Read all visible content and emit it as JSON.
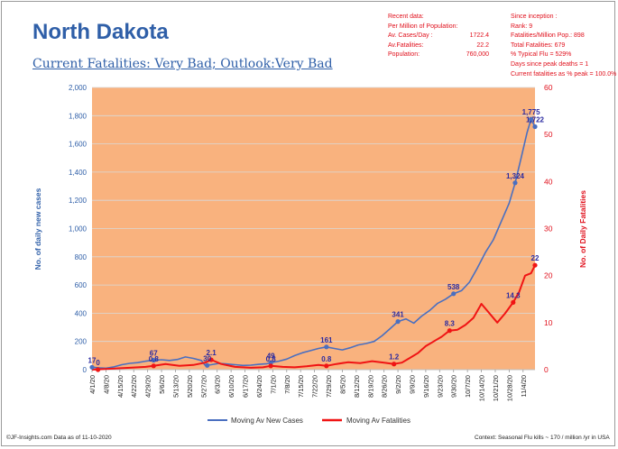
{
  "header": {
    "title": "North Dakota",
    "subtitle": "Current Fatalities: Very Bad; Outlook:Very Bad"
  },
  "recent": {
    "heading": "Recent data:",
    "per_million": "Per Million of Population:",
    "rows": [
      {
        "label": "Av. Cases/Day :",
        "value": "1722.4"
      },
      {
        "label": "Av.Fatalities:",
        "value": "22.2"
      },
      {
        "label": "Population:",
        "value": "760,000"
      }
    ]
  },
  "inception": {
    "heading": "Since inception :",
    "lines": [
      "Rank: 9",
      "Fatalities/Million Pop.: 898",
      "Total Fatalities: 679",
      "% Typical Flu = 529%",
      "Days since peak deaths = 1",
      "Current fatalities as % peak = 100.0%"
    ]
  },
  "footer": {
    "source": "©JF-Insights.com  Data as of 11-10-2020",
    "context": "Context: Seasonal Flu kills ~ 170 / million /yr in USA"
  },
  "colors": {
    "plot_bg": "#f9b27e",
    "cases": "#4a6fc0",
    "fatalities": "#f01414",
    "left_axis": "#2f5fa8",
    "right_axis": "#e0101c"
  },
  "chart_data": {
    "type": "line",
    "ylabel": "No. of daily new  cases",
    "y2label": "No. of Daily Fatalities",
    "ylim": [
      0,
      2000
    ],
    "y2lim": [
      0,
      60
    ],
    "yticks": [
      "0",
      "200",
      "400",
      "600",
      "800",
      "1,000",
      "1,200",
      "1,400",
      "1,600",
      "1,800",
      "2,000"
    ],
    "y2ticks": [
      "0",
      "10",
      "20",
      "30",
      "40",
      "50",
      "60"
    ],
    "xlim": [
      "2020-04-01",
      "2020-11-10"
    ],
    "xticks": [
      "4/1/20",
      "4/8/20",
      "4/15/20",
      "4/22/20",
      "4/29/20",
      "5/6/20",
      "5/13/20",
      "5/20/20",
      "5/27/20",
      "6/3/20",
      "6/10/20",
      "6/17/20",
      "6/24/20",
      "7/1/20",
      "7/8/20",
      "7/15/20",
      "7/22/20",
      "7/29/20",
      "8/5/20",
      "8/12/20",
      "8/19/20",
      "8/26/20",
      "9/2/20",
      "9/9/20",
      "9/16/20",
      "9/23/20",
      "9/30/20",
      "10/7/20",
      "10/14/20",
      "10/21/20",
      "10/28/20",
      "11/4/20"
    ],
    "grid": true,
    "legend_position": "bottom",
    "series": [
      {
        "name": "Moving Av New Cases",
        "axis": "left",
        "points": [
          [
            "2020-04-01",
            17
          ],
          [
            "2020-04-05",
            12
          ],
          [
            "2020-04-08",
            10
          ],
          [
            "2020-04-12",
            20
          ],
          [
            "2020-04-16",
            35
          ],
          [
            "2020-04-20",
            45
          ],
          [
            "2020-04-24",
            50
          ],
          [
            "2020-04-28",
            60
          ],
          [
            "2020-05-02",
            67
          ],
          [
            "2020-05-06",
            70
          ],
          [
            "2020-05-10",
            65
          ],
          [
            "2020-05-14",
            72
          ],
          [
            "2020-05-18",
            90
          ],
          [
            "2020-05-22",
            80
          ],
          [
            "2020-05-26",
            65
          ],
          [
            "2020-05-28",
            30
          ],
          [
            "2020-05-31",
            35
          ],
          [
            "2020-06-04",
            45
          ],
          [
            "2020-06-08",
            40
          ],
          [
            "2020-06-12",
            35
          ],
          [
            "2020-06-16",
            30
          ],
          [
            "2020-06-20",
            32
          ],
          [
            "2020-06-24",
            38
          ],
          [
            "2020-06-28",
            42
          ],
          [
            "2020-06-30",
            49
          ],
          [
            "2020-07-04",
            60
          ],
          [
            "2020-07-08",
            75
          ],
          [
            "2020-07-12",
            100
          ],
          [
            "2020-07-16",
            120
          ],
          [
            "2020-07-20",
            135
          ],
          [
            "2020-07-24",
            150
          ],
          [
            "2020-07-28",
            161
          ],
          [
            "2020-08-01",
            150
          ],
          [
            "2020-08-05",
            140
          ],
          [
            "2020-08-09",
            155
          ],
          [
            "2020-08-13",
            175
          ],
          [
            "2020-08-17",
            185
          ],
          [
            "2020-08-21",
            200
          ],
          [
            "2020-08-25",
            240
          ],
          [
            "2020-08-29",
            290
          ],
          [
            "2020-09-02",
            341
          ],
          [
            "2020-09-06",
            360
          ],
          [
            "2020-09-10",
            330
          ],
          [
            "2020-09-14",
            380
          ],
          [
            "2020-09-18",
            420
          ],
          [
            "2020-09-22",
            470
          ],
          [
            "2020-09-26",
            500
          ],
          [
            "2020-09-30",
            538
          ],
          [
            "2020-10-04",
            560
          ],
          [
            "2020-10-08",
            620
          ],
          [
            "2020-10-12",
            720
          ],
          [
            "2020-10-16",
            830
          ],
          [
            "2020-10-20",
            920
          ],
          [
            "2020-10-24",
            1050
          ],
          [
            "2020-10-28",
            1180
          ],
          [
            "2020-10-31",
            1324
          ],
          [
            "2020-11-03",
            1500
          ],
          [
            "2020-11-06",
            1680
          ],
          [
            "2020-11-08",
            1775
          ],
          [
            "2020-11-10",
            1722
          ]
        ]
      },
      {
        "name": "Moving Av Fatalities",
        "axis": "right",
        "points": [
          [
            "2020-04-01",
            0.0
          ],
          [
            "2020-04-10",
            0.2
          ],
          [
            "2020-04-20",
            0.4
          ],
          [
            "2020-04-28",
            0.6
          ],
          [
            "2020-05-02",
            0.8
          ],
          [
            "2020-05-08",
            1.2
          ],
          [
            "2020-05-15",
            0.8
          ],
          [
            "2020-05-22",
            1.0
          ],
          [
            "2020-05-28",
            1.5
          ],
          [
            "2020-05-31",
            2.1
          ],
          [
            "2020-06-05",
            1.2
          ],
          [
            "2020-06-12",
            0.6
          ],
          [
            "2020-06-20",
            0.4
          ],
          [
            "2020-06-26",
            0.5
          ],
          [
            "2020-06-30",
            0.8
          ],
          [
            "2020-07-06",
            0.6
          ],
          [
            "2020-07-12",
            0.5
          ],
          [
            "2020-07-18",
            0.7
          ],
          [
            "2020-07-24",
            1.0
          ],
          [
            "2020-07-28",
            0.8
          ],
          [
            "2020-08-02",
            1.2
          ],
          [
            "2020-08-08",
            1.6
          ],
          [
            "2020-08-14",
            1.4
          ],
          [
            "2020-08-20",
            1.8
          ],
          [
            "2020-08-26",
            1.5
          ],
          [
            "2020-08-31",
            1.2
          ],
          [
            "2020-09-04",
            1.5
          ],
          [
            "2020-09-08",
            2.5
          ],
          [
            "2020-09-12",
            3.5
          ],
          [
            "2020-09-16",
            5.0
          ],
          [
            "2020-09-20",
            6.0
          ],
          [
            "2020-09-24",
            7.0
          ],
          [
            "2020-09-28",
            8.3
          ],
          [
            "2020-10-02",
            8.5
          ],
          [
            "2020-10-06",
            9.5
          ],
          [
            "2020-10-10",
            11.0
          ],
          [
            "2020-10-14",
            14.0
          ],
          [
            "2020-10-18",
            12.0
          ],
          [
            "2020-10-22",
            10.0
          ],
          [
            "2020-10-26",
            12.0
          ],
          [
            "2020-10-30",
            14.3
          ],
          [
            "2020-11-02",
            16.5
          ],
          [
            "2020-11-05",
            20.0
          ],
          [
            "2020-11-08",
            20.5
          ],
          [
            "2020-11-10",
            22.2
          ]
        ]
      }
    ],
    "annotations": [
      {
        "series": 0,
        "x": "2020-04-01",
        "y": 17,
        "label": "17"
      },
      {
        "series": 1,
        "x": "2020-04-04",
        "y": 0,
        "label": "0"
      },
      {
        "series": 0,
        "x": "2020-05-02",
        "y": 67,
        "label": "67"
      },
      {
        "series": 1,
        "x": "2020-05-02",
        "y": 0.8,
        "label": "0.8"
      },
      {
        "series": 1,
        "x": "2020-05-31",
        "y": 2.1,
        "label": "2.1"
      },
      {
        "series": 0,
        "x": "2020-05-29",
        "y": 30,
        "label": "30"
      },
      {
        "series": 0,
        "x": "2020-06-30",
        "y": 49,
        "label": "49"
      },
      {
        "series": 1,
        "x": "2020-06-30",
        "y": 0.8,
        "label": "0.8"
      },
      {
        "series": 0,
        "x": "2020-07-28",
        "y": 161,
        "label": "161"
      },
      {
        "series": 1,
        "x": "2020-07-28",
        "y": 0.8,
        "label": "0.8"
      },
      {
        "series": 0,
        "x": "2020-09-02",
        "y": 341,
        "label": "341"
      },
      {
        "series": 1,
        "x": "2020-08-31",
        "y": 1.2,
        "label": "1.2"
      },
      {
        "series": 0,
        "x": "2020-09-30",
        "y": 538,
        "label": "538"
      },
      {
        "series": 1,
        "x": "2020-09-28",
        "y": 8.3,
        "label": "8.3"
      },
      {
        "series": 0,
        "x": "2020-10-31",
        "y": 1324,
        "label": "1,324"
      },
      {
        "series": 1,
        "x": "2020-10-30",
        "y": 14.3,
        "label": "14.3"
      },
      {
        "series": 0,
        "x": "2020-11-08",
        "y": 1775,
        "label": "1,775"
      },
      {
        "series": 0,
        "x": "2020-11-10",
        "y": 1722,
        "label": "1,722"
      },
      {
        "series": 1,
        "x": "2020-11-10",
        "y": 22.2,
        "label": "22"
      }
    ]
  }
}
